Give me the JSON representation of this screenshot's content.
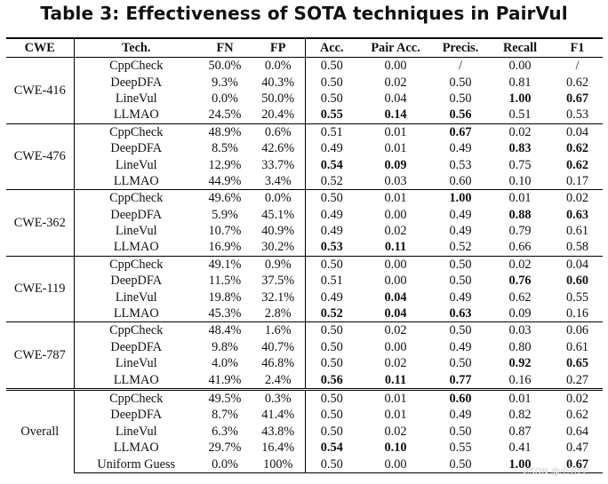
{
  "title": "Table 3: Effectiveness of SOTA techniques in PairVul",
  "columns": [
    "CWE",
    "Tech.",
    "FN",
    "FP",
    "Acc.",
    "Pair Acc.",
    "Precis.",
    "Recall",
    "F1"
  ],
  "groups": [
    {
      "cwe": "CWE-416",
      "rows": [
        {
          "tech": "CppCheck",
          "fn": "50.0%",
          "fp": "0.0%",
          "acc": "0.50",
          "pair_acc": "0.00",
          "precis": "/",
          "recall": "0.00",
          "f1": "/"
        },
        {
          "tech": "DeepDFA",
          "fn": "9.3%",
          "fp": "40.3%",
          "acc": "0.50",
          "pair_acc": "0.02",
          "precis": "0.50",
          "recall": "0.81",
          "f1": "0.62"
        },
        {
          "tech": "LineVul",
          "fn": "0.0%",
          "fp": "50.0%",
          "acc": "0.50",
          "pair_acc": "0.04",
          "precis": "0.50",
          "recall": "1.00",
          "f1": "0.67",
          "bold": [
            "recall",
            "f1"
          ]
        },
        {
          "tech": "LLMAO",
          "fn": "24.5%",
          "fp": "20.4%",
          "acc": "0.55",
          "pair_acc": "0.14",
          "precis": "0.56",
          "recall": "0.51",
          "f1": "0.53",
          "bold": [
            "acc",
            "pair_acc",
            "precis"
          ]
        }
      ]
    },
    {
      "cwe": "CWE-476",
      "rows": [
        {
          "tech": "CppCheck",
          "fn": "48.9%",
          "fp": "0.6%",
          "acc": "0.51",
          "pair_acc": "0.01",
          "precis": "0.67",
          "recall": "0.02",
          "f1": "0.04",
          "bold": [
            "precis"
          ]
        },
        {
          "tech": "DeepDFA",
          "fn": "8.5%",
          "fp": "42.6%",
          "acc": "0.49",
          "pair_acc": "0.01",
          "precis": "0.49",
          "recall": "0.83",
          "f1": "0.62",
          "bold": [
            "recall",
            "f1"
          ]
        },
        {
          "tech": "LineVul",
          "fn": "12.9%",
          "fp": "33.7%",
          "acc": "0.54",
          "pair_acc": "0.09",
          "precis": "0.53",
          "recall": "0.75",
          "f1": "0.62",
          "bold": [
            "acc",
            "pair_acc",
            "f1"
          ]
        },
        {
          "tech": "LLMAO",
          "fn": "44.9%",
          "fp": "3.4%",
          "acc": "0.52",
          "pair_acc": "0.03",
          "precis": "0.60",
          "recall": "0.10",
          "f1": "0.17"
        }
      ]
    },
    {
      "cwe": "CWE-362",
      "rows": [
        {
          "tech": "CppCheck",
          "fn": "49.6%",
          "fp": "0.0%",
          "acc": "0.50",
          "pair_acc": "0.01",
          "precis": "1.00",
          "recall": "0.01",
          "f1": "0.02",
          "bold": [
            "precis"
          ]
        },
        {
          "tech": "DeepDFA",
          "fn": "5.9%",
          "fp": "45.1%",
          "acc": "0.49",
          "pair_acc": "0.00",
          "precis": "0.49",
          "recall": "0.88",
          "f1": "0.63",
          "bold": [
            "recall",
            "f1"
          ]
        },
        {
          "tech": "LineVul",
          "fn": "10.7%",
          "fp": "40.9%",
          "acc": "0.49",
          "pair_acc": "0.02",
          "precis": "0.49",
          "recall": "0.79",
          "f1": "0.61"
        },
        {
          "tech": "LLMAO",
          "fn": "16.9%",
          "fp": "30.2%",
          "acc": "0.53",
          "pair_acc": "0.11",
          "precis": "0.52",
          "recall": "0.66",
          "f1": "0.58",
          "bold": [
            "acc",
            "pair_acc"
          ]
        }
      ]
    },
    {
      "cwe": "CWE-119",
      "rows": [
        {
          "tech": "CppCheck",
          "fn": "49.1%",
          "fp": "0.9%",
          "acc": "0.50",
          "pair_acc": "0.00",
          "precis": "0.50",
          "recall": "0.02",
          "f1": "0.04"
        },
        {
          "tech": "DeepDFA",
          "fn": "11.5%",
          "fp": "37.5%",
          "acc": "0.51",
          "pair_acc": "0.00",
          "precis": "0.50",
          "recall": "0.76",
          "f1": "0.60",
          "bold": [
            "recall",
            "f1"
          ]
        },
        {
          "tech": "LineVul",
          "fn": "19.8%",
          "fp": "32.1%",
          "acc": "0.49",
          "pair_acc": "0.04",
          "precis": "0.49",
          "recall": "0.62",
          "f1": "0.55",
          "bold": [
            "pair_acc"
          ]
        },
        {
          "tech": "LLMAO",
          "fn": "45.3%",
          "fp": "2.8%",
          "acc": "0.52",
          "pair_acc": "0.04",
          "precis": "0.63",
          "recall": "0.09",
          "f1": "0.16",
          "bold": [
            "acc",
            "pair_acc",
            "precis"
          ]
        }
      ]
    },
    {
      "cwe": "CWE-787",
      "rows": [
        {
          "tech": "CppCheck",
          "fn": "48.4%",
          "fp": "1.6%",
          "acc": "0.50",
          "pair_acc": "0.02",
          "precis": "0.50",
          "recall": "0.03",
          "f1": "0.06"
        },
        {
          "tech": "DeepDFA",
          "fn": "9.8%",
          "fp": "40.7%",
          "acc": "0.50",
          "pair_acc": "0.00",
          "precis": "0.49",
          "recall": "0.80",
          "f1": "0.61"
        },
        {
          "tech": "LineVul",
          "fn": "4.0%",
          "fp": "46.8%",
          "acc": "0.50",
          "pair_acc": "0.02",
          "precis": "0.50",
          "recall": "0.92",
          "f1": "0.65",
          "bold": [
            "recall",
            "f1"
          ]
        },
        {
          "tech": "LLMAO",
          "fn": "41.9%",
          "fp": "2.4%",
          "acc": "0.56",
          "pair_acc": "0.11",
          "precis": "0.77",
          "recall": "0.16",
          "f1": "0.27",
          "bold": [
            "acc",
            "pair_acc",
            "precis"
          ]
        }
      ]
    },
    {
      "cwe": "Overall",
      "rows": [
        {
          "tech": "CppCheck",
          "fn": "49.5%",
          "fp": "0.3%",
          "acc": "0.50",
          "pair_acc": "0.01",
          "precis": "0.60",
          "recall": "0.01",
          "f1": "0.02",
          "bold": [
            "precis"
          ]
        },
        {
          "tech": "DeepDFA",
          "fn": "8.7%",
          "fp": "41.4%",
          "acc": "0.50",
          "pair_acc": "0.01",
          "precis": "0.49",
          "recall": "0.82",
          "f1": "0.62"
        },
        {
          "tech": "LineVul",
          "fn": "6.3%",
          "fp": "43.8%",
          "acc": "0.50",
          "pair_acc": "0.02",
          "precis": "0.50",
          "recall": "0.87",
          "f1": "0.64"
        },
        {
          "tech": "LLMAO",
          "fn": "29.7%",
          "fp": "16.4%",
          "acc": "0.54",
          "pair_acc": "0.10",
          "precis": "0.55",
          "recall": "0.41",
          "f1": "0.47",
          "bold": [
            "acc",
            "pair_acc"
          ]
        },
        {
          "tech": "Uniform Guess",
          "fn": "0.0%",
          "fp": "100%",
          "acc": "0.50",
          "pair_acc": "0.00",
          "precis": "0.50",
          "recall": "1.00",
          "f1": "0.67",
          "bold": [
            "recall",
            "f1"
          ]
        }
      ]
    }
  ],
  "watermark": "CSDN @小丑FE"
}
